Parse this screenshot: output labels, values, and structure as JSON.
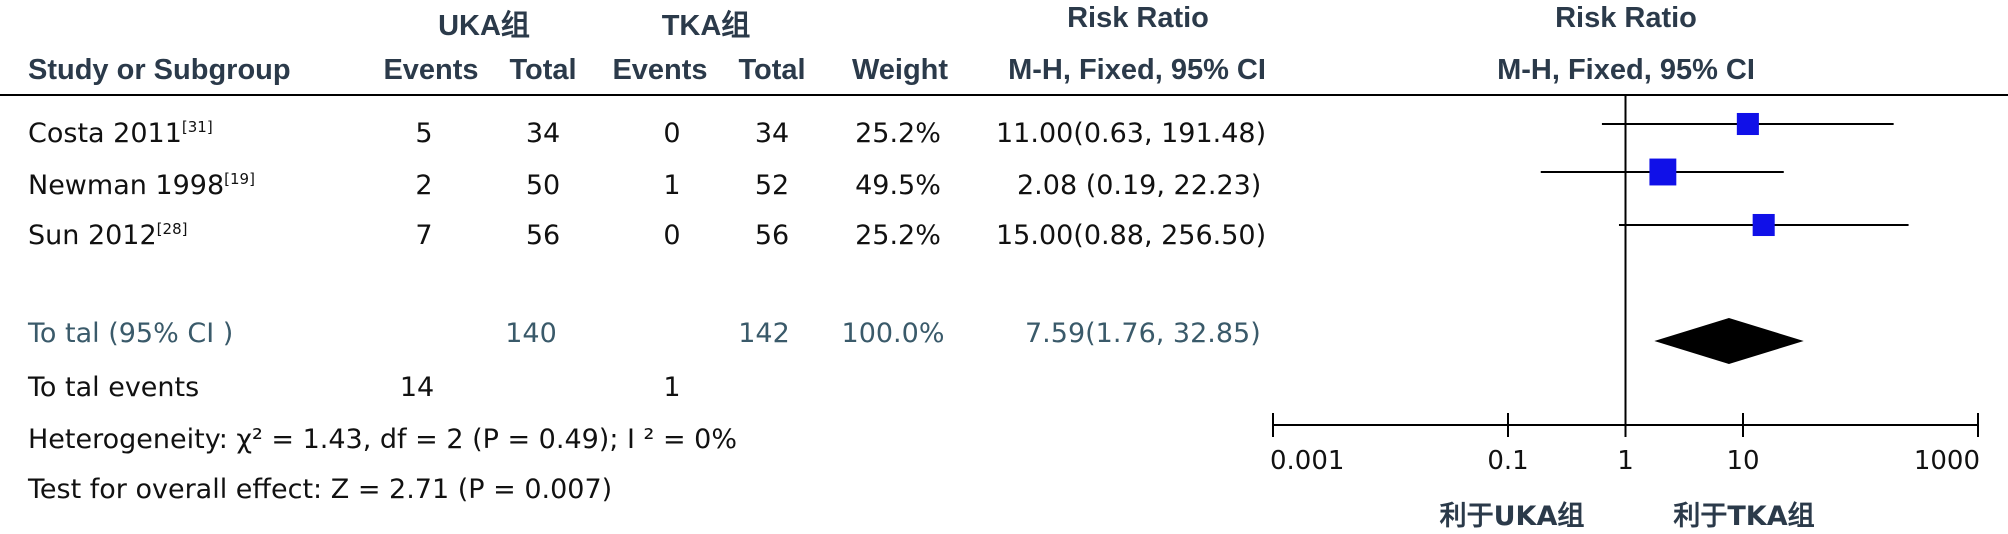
{
  "chart_data": {
    "type": "forest",
    "headers": {
      "group1": "UKA组",
      "group2": "TKA组",
      "rr_table": "Risk Ratio",
      "rr_plot": "Risk Ratio",
      "study": "Study or Subgroup",
      "events1": "Events",
      "total1": "Total",
      "events2": "Events",
      "total2": "Total",
      "weight": "Weight",
      "method_table": "M-H, Fixed, 95% CI",
      "method_plot": "M-H, Fixed, 95% CI"
    },
    "studies": [
      {
        "name": "Costa 2011",
        "ref": "[31]",
        "events1": "5",
        "total1": "34",
        "events2": "0",
        "total2": "34",
        "weight": "25.2%",
        "ci_text": "11.00(0.63, 191.48)",
        "rr": 11.0,
        "lower": 0.63,
        "upper": 191.48,
        "w": 25.2
      },
      {
        "name": "Newman 1998",
        "ref": "[19]",
        "events1": "2",
        "total1": "50",
        "events2": "1",
        "total2": "52",
        "weight": "49.5%",
        "ci_text": "2.08 (0.19, 22.23)",
        "rr": 2.08,
        "lower": 0.19,
        "upper": 22.23,
        "w": 49.5
      },
      {
        "name": "Sun 2012",
        "ref": "[28]",
        "events1": "7",
        "total1": "56",
        "events2": "0",
        "total2": "56",
        "weight": "25.2%",
        "ci_text": "15.00(0.88, 256.50)",
        "rr": 15.0,
        "lower": 0.88,
        "upper": 256.5,
        "w": 25.2
      }
    ],
    "total": {
      "label": "To tal (95% CI )",
      "total1": "140",
      "total2": "142",
      "weight": "100.0%",
      "ci_text": "7.59(1.76, 32.85)",
      "rr": 7.59,
      "lower": 1.76,
      "upper": 32.85
    },
    "total_events": {
      "label": "To tal events",
      "events1": "14",
      "events2": "1"
    },
    "heterogeneity": "Heterogeneity:  χ² = 1.43, df = 2 (P = 0.49); I ² = 0%",
    "overall_effect": "Test for overall effect: Z = 2.71 (P = 0.007)",
    "axis": {
      "scale": "log",
      "xlim": [
        0.001,
        1000
      ],
      "ticks": [
        "0.001",
        "0.1",
        "1",
        "10",
        "1000"
      ],
      "tick_values": [
        0.001,
        0.1,
        1,
        10,
        1000
      ],
      "null_value": 1
    },
    "favours_left": "利于UKA组",
    "favours_right": "利于TKA组",
    "colors": {
      "study_marker": "#1010e8",
      "diamond": "#000000"
    }
  }
}
